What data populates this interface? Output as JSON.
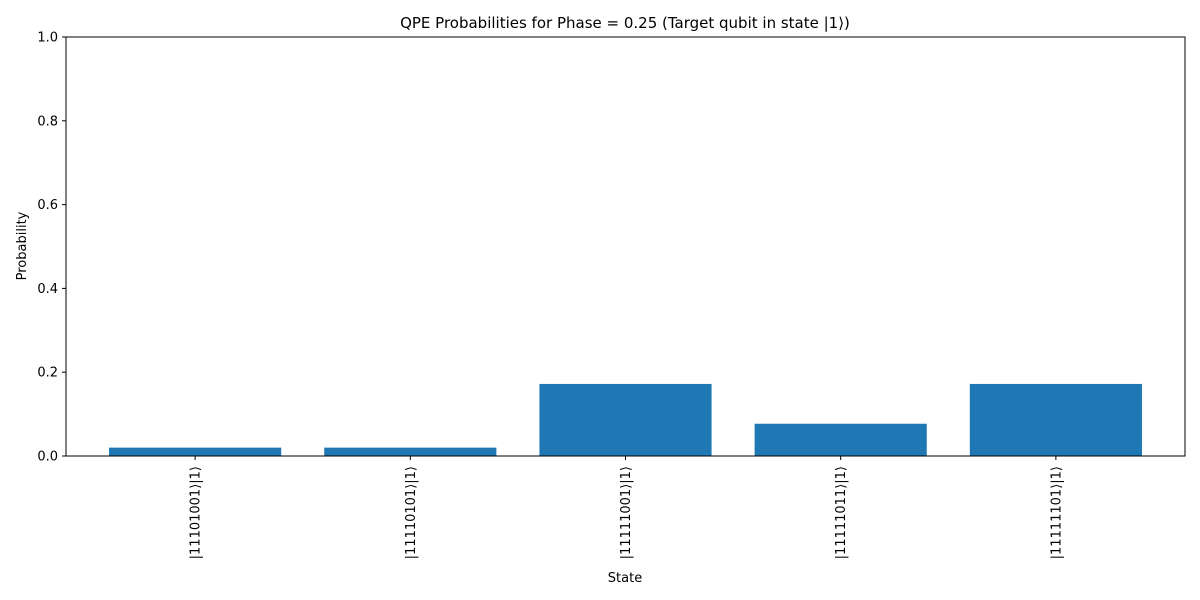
{
  "chart_data": {
    "type": "bar",
    "title": "QPE Probabilities for Phase = 0.25 (Target qubit in state |1⟩)",
    "xlabel": "State",
    "ylabel": "Probability",
    "categories": [
      "|11101001⟩|1⟩",
      "|11110101⟩|1⟩",
      "|11111001⟩|1⟩",
      "|11111011⟩|1⟩",
      "|11111101⟩|1⟩"
    ],
    "values": [
      0.02,
      0.02,
      0.172,
      0.077,
      0.172
    ],
    "ylim": [
      0,
      1
    ],
    "yticks": [
      "0.0",
      "0.2",
      "0.4",
      "0.6",
      "0.8",
      "1.0"
    ],
    "bar_color": "#1f77b4",
    "grid": false,
    "legend": "none"
  }
}
